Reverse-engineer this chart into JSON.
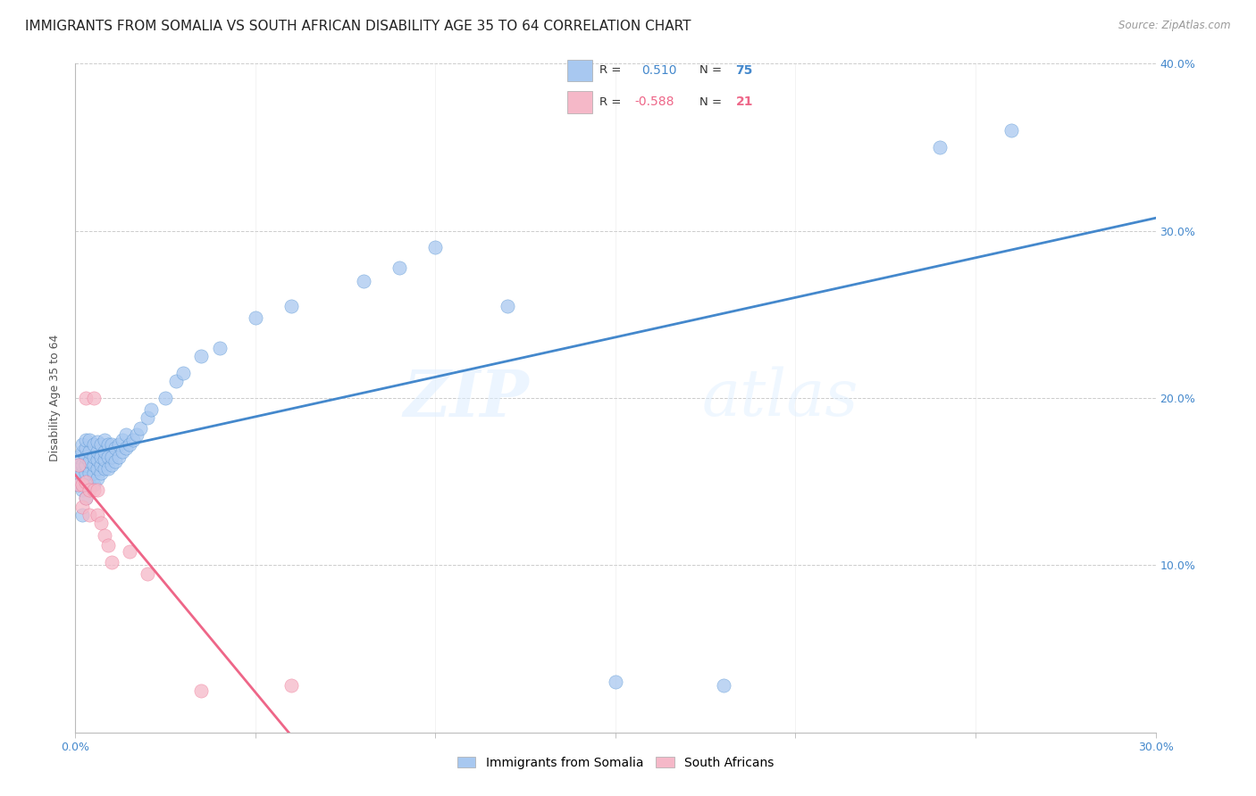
{
  "title": "IMMIGRANTS FROM SOMALIA VS SOUTH AFRICAN DISABILITY AGE 35 TO 64 CORRELATION CHART",
  "source": "Source: ZipAtlas.com",
  "ylabel": "Disability Age 35 to 64",
  "x_min": 0.0,
  "x_max": 0.3,
  "y_min": 0.0,
  "y_max": 0.4,
  "blue_R": 0.51,
  "blue_N": 75,
  "pink_R": -0.588,
  "pink_N": 21,
  "blue_color": "#a8c8f0",
  "pink_color": "#f5b8c8",
  "blue_line_color": "#4488cc",
  "pink_line_color": "#ee6688",
  "watermark_zip": "ZIP",
  "watermark_atlas": "atlas",
  "blue_scatter_x": [
    0.001,
    0.001,
    0.001,
    0.001,
    0.002,
    0.002,
    0.002,
    0.002,
    0.002,
    0.002,
    0.003,
    0.003,
    0.003,
    0.003,
    0.003,
    0.003,
    0.003,
    0.004,
    0.004,
    0.004,
    0.004,
    0.004,
    0.005,
    0.005,
    0.005,
    0.005,
    0.005,
    0.006,
    0.006,
    0.006,
    0.006,
    0.006,
    0.007,
    0.007,
    0.007,
    0.007,
    0.008,
    0.008,
    0.008,
    0.008,
    0.009,
    0.009,
    0.009,
    0.01,
    0.01,
    0.01,
    0.011,
    0.011,
    0.012,
    0.012,
    0.013,
    0.013,
    0.014,
    0.014,
    0.015,
    0.016,
    0.017,
    0.018,
    0.02,
    0.021,
    0.025,
    0.028,
    0.03,
    0.035,
    0.04,
    0.05,
    0.06,
    0.08,
    0.09,
    0.1,
    0.12,
    0.15,
    0.18,
    0.24,
    0.26
  ],
  "blue_scatter_y": [
    0.148,
    0.155,
    0.16,
    0.165,
    0.13,
    0.145,
    0.155,
    0.16,
    0.168,
    0.172,
    0.14,
    0.148,
    0.155,
    0.16,
    0.165,
    0.17,
    0.175,
    0.148,
    0.155,
    0.162,
    0.168,
    0.175,
    0.148,
    0.155,
    0.16,
    0.165,
    0.172,
    0.152,
    0.158,
    0.163,
    0.168,
    0.174,
    0.155,
    0.16,
    0.165,
    0.172,
    0.158,
    0.163,
    0.168,
    0.175,
    0.158,
    0.165,
    0.172,
    0.16,
    0.165,
    0.172,
    0.162,
    0.17,
    0.165,
    0.172,
    0.168,
    0.175,
    0.17,
    0.178,
    0.172,
    0.175,
    0.178,
    0.182,
    0.188,
    0.193,
    0.2,
    0.21,
    0.215,
    0.225,
    0.23,
    0.248,
    0.255,
    0.27,
    0.278,
    0.29,
    0.255,
    0.03,
    0.028,
    0.35,
    0.36
  ],
  "pink_scatter_x": [
    0.001,
    0.001,
    0.002,
    0.002,
    0.003,
    0.003,
    0.003,
    0.004,
    0.004,
    0.005,
    0.005,
    0.006,
    0.006,
    0.007,
    0.008,
    0.009,
    0.01,
    0.015,
    0.02,
    0.035,
    0.06
  ],
  "pink_scatter_y": [
    0.148,
    0.16,
    0.135,
    0.148,
    0.14,
    0.15,
    0.2,
    0.13,
    0.145,
    0.145,
    0.2,
    0.13,
    0.145,
    0.125,
    0.118,
    0.112,
    0.102,
    0.108,
    0.095,
    0.025,
    0.028
  ]
}
